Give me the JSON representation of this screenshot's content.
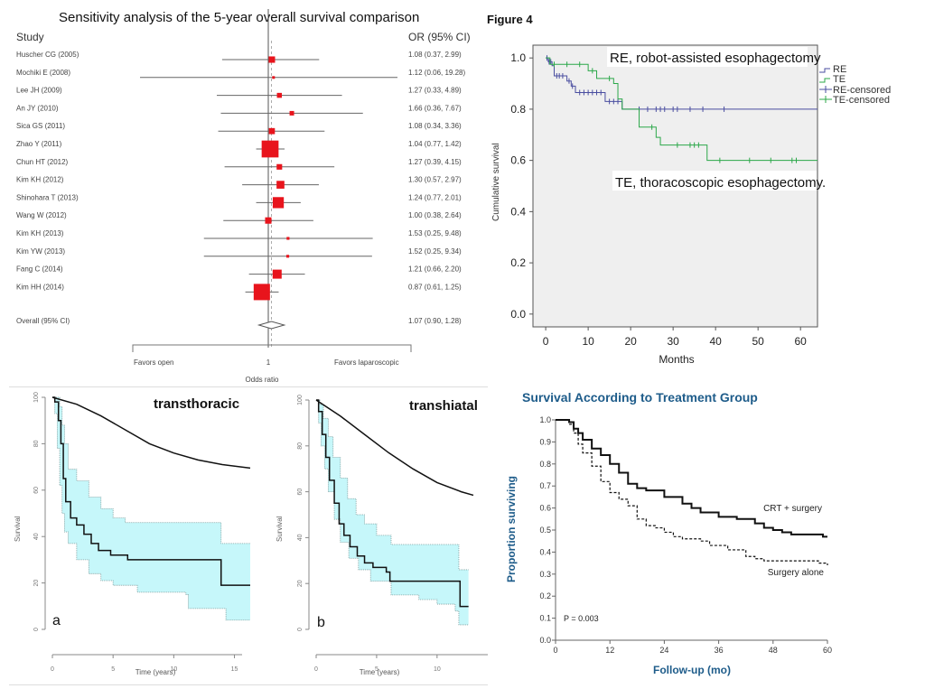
{
  "chart_data": [
    {
      "type": "forest",
      "title": "Sensitivity analysis of the 5-year overall survival comparison",
      "col_study": "Study",
      "col_or": "OR (95% CI)",
      "xlabel": "Odds ratio",
      "ref_tick": "1",
      "left_label": "Favors open",
      "right_label": "Favors laparoscopic",
      "colors": {
        "box": "#e8141c",
        "line": "#666666"
      },
      "studies": [
        {
          "name": "Huscher CG (2005)",
          "or": 1.08,
          "lo": 0.37,
          "hi": 2.99,
          "text": "1.08 (0.37, 2.99)",
          "weight": 2
        },
        {
          "name": "Mochiki E (2008)",
          "or": 1.12,
          "lo": 0.06,
          "hi": 19.28,
          "text": "1.12 (0.06, 19.28)",
          "weight": 0.3
        },
        {
          "name": "Lee JH (2009)",
          "or": 1.27,
          "lo": 0.33,
          "hi": 4.89,
          "text": "1.27 (0.33, 4.89)",
          "weight": 1.2
        },
        {
          "name": "An JY (2010)",
          "or": 1.66,
          "lo": 0.36,
          "hi": 7.67,
          "text": "1.66 (0.36, 7.67)",
          "weight": 1
        },
        {
          "name": "Sica GS (2011)",
          "or": 1.08,
          "lo": 0.34,
          "hi": 3.36,
          "text": "1.08 (0.34, 3.36)",
          "weight": 1.8
        },
        {
          "name": "Zhao Y (2011)",
          "or": 1.04,
          "lo": 0.77,
          "hi": 1.42,
          "text": "1.04 (0.77, 1.42)",
          "weight": 14
        },
        {
          "name": "Chun HT (2012)",
          "or": 1.27,
          "lo": 0.39,
          "hi": 4.15,
          "text": "1.27 (0.39, 4.15)",
          "weight": 1.5
        },
        {
          "name": "Kim KH (2012)",
          "or": 1.3,
          "lo": 0.57,
          "hi": 2.97,
          "text": "1.30 (0.57, 2.97)",
          "weight": 3
        },
        {
          "name": "Shinohara T (2013)",
          "or": 1.24,
          "lo": 0.77,
          "hi": 2.01,
          "text": "1.24 (0.77, 2.01)",
          "weight": 6
        },
        {
          "name": "Wang W (2012)",
          "or": 1.0,
          "lo": 0.38,
          "hi": 2.64,
          "text": "1.00 (0.38, 2.64)",
          "weight": 2
        },
        {
          "name": "Kim KH (2013)",
          "or": 1.53,
          "lo": 0.25,
          "hi": 9.48,
          "text": "1.53 (0.25, 9.48)",
          "weight": 0.4
        },
        {
          "name": "Kim YW (2013)",
          "or": 1.52,
          "lo": 0.25,
          "hi": 9.34,
          "text": "1.52 (0.25, 9.34)",
          "weight": 0.4
        },
        {
          "name": "Fang C (2014)",
          "or": 1.21,
          "lo": 0.66,
          "hi": 2.2,
          "text": "1.21 (0.66, 2.20)",
          "weight": 4
        },
        {
          "name": "Kim HH (2014)",
          "or": 0.87,
          "lo": 0.61,
          "hi": 1.25,
          "text": "0.87 (0.61, 1.25)",
          "weight": 13
        }
      ],
      "overall": {
        "name": "Overall (95% CI)",
        "or": 1.07,
        "lo": 0.9,
        "hi": 1.28,
        "text": "1.07 (0.90, 1.28)"
      },
      "xlim": [
        0.05,
        20
      ],
      "scale": "log"
    },
    {
      "type": "line",
      "figure_label": "Figure 4",
      "xlabel": "Months",
      "ylabel": "Cumulative survival",
      "xticks": [
        0,
        10,
        20,
        30,
        40,
        50,
        60
      ],
      "yticks": [
        "0.0",
        "0.2",
        "0.4",
        "0.6",
        "0.8",
        "1.0"
      ],
      "xlim": [
        -3,
        64
      ],
      "ylim": [
        -0.05,
        1.05
      ],
      "annotations": [
        "RE, robot-assisted esophagectomy",
        "TE, thoracoscopic esophagectomy."
      ],
      "legend": [
        "RE",
        "TE",
        "RE-censored",
        "TE-censored"
      ],
      "legend_position": "right",
      "colors": {
        "RE": "#4a4ea0",
        "TE": "#2ca84a",
        "bg": "#efefef"
      },
      "series": [
        {
          "name": "RE",
          "steps": [
            [
              0,
              1.0
            ],
            [
              0.6,
              0.985
            ],
            [
              1.5,
              0.97
            ],
            [
              2,
              0.93
            ],
            [
              5,
              0.91
            ],
            [
              6,
              0.89
            ],
            [
              7,
              0.865
            ],
            [
              14,
              0.83
            ],
            [
              18,
              0.8
            ],
            [
              64,
              0.8
            ]
          ],
          "censored": [
            0.3,
            0.8,
            1.2,
            2.6,
            3.2,
            4,
            5.5,
            6.3,
            8,
            9,
            10,
            11,
            12,
            13,
            15,
            16,
            17,
            22,
            24,
            26,
            27,
            28,
            30,
            31,
            34,
            37,
            42
          ]
        },
        {
          "name": "TE",
          "steps": [
            [
              0,
              1.0
            ],
            [
              1,
              0.975
            ],
            [
              10,
              0.95
            ],
            [
              12,
              0.92
            ],
            [
              16,
              0.9
            ],
            [
              17,
              0.84
            ],
            [
              18,
              0.8
            ],
            [
              22,
              0.73
            ],
            [
              26,
              0.69
            ],
            [
              27,
              0.66
            ],
            [
              38,
              0.6
            ],
            [
              64,
              0.6
            ]
          ],
          "censored": [
            2,
            5,
            8,
            11,
            15,
            25,
            31,
            34,
            35,
            36,
            41,
            48,
            53,
            58,
            59
          ]
        }
      ]
    },
    {
      "type": "line",
      "panel_label": "a",
      "title": "transthoracic",
      "xlabel": "Time (years)",
      "ylabel": "Survival",
      "xticks": [
        0,
        5,
        10,
        15
      ],
      "yticks": [
        0,
        20,
        40,
        60,
        80,
        100
      ],
      "xlim": [
        0,
        16.3
      ],
      "ylim": [
        0,
        100
      ],
      "colors": {
        "ci": "#c6f7fa",
        "line": "#111111",
        "ci_edge": "#7a9a9a"
      },
      "series": [
        {
          "name": "expected",
          "points": [
            [
              0,
              100
            ],
            [
              2,
              97
            ],
            [
              4,
              92
            ],
            [
              6,
              86
            ],
            [
              8,
              80
            ],
            [
              10,
              76
            ],
            [
              12,
              73
            ],
            [
              14,
              71
            ],
            [
              16.3,
              69.5
            ]
          ]
        },
        {
          "name": "observed",
          "steps": [
            [
              0,
              100
            ],
            [
              0.2,
              98
            ],
            [
              0.5,
              90
            ],
            [
              0.7,
              80
            ],
            [
              0.9,
              65
            ],
            [
              1.1,
              55
            ],
            [
              1.5,
              48
            ],
            [
              2,
              45
            ],
            [
              2.6,
              41
            ],
            [
              3.2,
              37
            ],
            [
              3.8,
              34
            ],
            [
              4.8,
              32
            ],
            [
              6.2,
              30
            ],
            [
              13.9,
              30
            ],
            [
              13.9,
              19
            ],
            [
              16.3,
              19
            ]
          ]
        },
        {
          "name": "ci_upper",
          "steps": [
            [
              0,
              100
            ],
            [
              0.3,
              100
            ],
            [
              0.6,
              96
            ],
            [
              0.8,
              88
            ],
            [
              1,
              80
            ],
            [
              1.3,
              69
            ],
            [
              2,
              64
            ],
            [
              3,
              57
            ],
            [
              4,
              52
            ],
            [
              5,
              48
            ],
            [
              6,
              46
            ],
            [
              13.9,
              46
            ],
            [
              13.9,
              37
            ],
            [
              16.3,
              37
            ]
          ]
        },
        {
          "name": "ci_lower",
          "steps": [
            [
              0,
              100
            ],
            [
              0.2,
              93
            ],
            [
              0.4,
              78
            ],
            [
              0.6,
              62
            ],
            [
              0.8,
              50
            ],
            [
              1,
              42
            ],
            [
              1.3,
              37
            ],
            [
              2,
              30
            ],
            [
              3,
              24
            ],
            [
              4,
              21
            ],
            [
              5,
              19
            ],
            [
              7,
              16
            ],
            [
              11,
              15
            ],
            [
              11.2,
              9
            ],
            [
              14,
              9
            ],
            [
              14.3,
              4
            ],
            [
              16.3,
              4
            ]
          ]
        }
      ]
    },
    {
      "type": "line",
      "panel_label": "b",
      "title": "transhiatal",
      "xlabel": "Time (years)",
      "ylabel": "Survival",
      "xticks": [
        0,
        5,
        10
      ],
      "yticks": [
        0,
        20,
        40,
        60,
        80,
        100
      ],
      "xlim": [
        0,
        13
      ],
      "ylim": [
        0,
        100
      ],
      "colors": {
        "ci": "#c6f7fa",
        "line": "#111111",
        "ci_edge": "#7a9a9a"
      },
      "series": [
        {
          "name": "expected",
          "points": [
            [
              0,
              100
            ],
            [
              2,
              93
            ],
            [
              4,
              85
            ],
            [
              6,
              77
            ],
            [
              8,
              70
            ],
            [
              10,
              64
            ],
            [
              12,
              60
            ],
            [
              13,
              58.5
            ]
          ]
        },
        {
          "name": "observed",
          "steps": [
            [
              0,
              100
            ],
            [
              0.2,
              95
            ],
            [
              0.5,
              85
            ],
            [
              0.8,
              75
            ],
            [
              1.1,
              65
            ],
            [
              1.5,
              55
            ],
            [
              1.9,
              46
            ],
            [
              2.3,
              41
            ],
            [
              2.8,
              36
            ],
            [
              3.4,
              32
            ],
            [
              4,
              29
            ],
            [
              4.7,
              27
            ],
            [
              5.8,
              25
            ],
            [
              6.1,
              21
            ],
            [
              11.9,
              21
            ],
            [
              11.9,
              10
            ],
            [
              12.6,
              10
            ]
          ]
        },
        {
          "name": "ci_upper",
          "steps": [
            [
              0,
              100
            ],
            [
              0.3,
              98
            ],
            [
              0.6,
              92
            ],
            [
              1,
              84
            ],
            [
              1.4,
              75
            ],
            [
              2,
              66
            ],
            [
              2.6,
              57
            ],
            [
              3.3,
              50
            ],
            [
              4,
              46
            ],
            [
              5,
              41
            ],
            [
              6.2,
              37
            ],
            [
              11.8,
              37
            ],
            [
              11.8,
              26
            ],
            [
              12.6,
              26
            ]
          ]
        },
        {
          "name": "ci_lower",
          "steps": [
            [
              0,
              100
            ],
            [
              0.2,
              90
            ],
            [
              0.4,
              80
            ],
            [
              0.7,
              70
            ],
            [
              1,
              60
            ],
            [
              1.5,
              48
            ],
            [
              2,
              38
            ],
            [
              2.7,
              31
            ],
            [
              3.5,
              26
            ],
            [
              4.5,
              21
            ],
            [
              6.2,
              15
            ],
            [
              8.5,
              13
            ],
            [
              10,
              11
            ],
            [
              11.5,
              8
            ],
            [
              11.8,
              2
            ],
            [
              12.6,
              2
            ]
          ]
        }
      ]
    },
    {
      "type": "line",
      "title": "Survival According to Treatment Group",
      "xlabel": "Follow-up (mo)",
      "ylabel": "Proportion surviving",
      "xticks": [
        0,
        12,
        24,
        36,
        48,
        60
      ],
      "yticks": [
        "0.0",
        "0.1",
        "0.2",
        "0.3",
        "0.4",
        "0.5",
        "0.6",
        "0.7",
        "0.8",
        "0.9",
        "1.0"
      ],
      "xlim": [
        0,
        60
      ],
      "ylim": [
        0,
        1.0
      ],
      "annotations": [
        "CRT + surgery",
        "Surgery alone",
        "P = 0.003"
      ],
      "colors": {
        "title": "#1e5c8a",
        "line": "#111111"
      },
      "series": [
        {
          "name": "CRT + surgery",
          "style": "solid",
          "points": [
            [
              0,
              1.0
            ],
            [
              2,
              1.0
            ],
            [
              3,
              0.99
            ],
            [
              4,
              0.96
            ],
            [
              5,
              0.94
            ],
            [
              6,
              0.91
            ],
            [
              8,
              0.87
            ],
            [
              10,
              0.84
            ],
            [
              12,
              0.8
            ],
            [
              14,
              0.76
            ],
            [
              16,
              0.71
            ],
            [
              18,
              0.69
            ],
            [
              20,
              0.68
            ],
            [
              24,
              0.65
            ],
            [
              28,
              0.62
            ],
            [
              30,
              0.6
            ],
            [
              32,
              0.58
            ],
            [
              36,
              0.56
            ],
            [
              40,
              0.55
            ],
            [
              44,
              0.53
            ],
            [
              46,
              0.51
            ],
            [
              48,
              0.5
            ],
            [
              50,
              0.49
            ],
            [
              52,
              0.48
            ],
            [
              58,
              0.48
            ],
            [
              59,
              0.47
            ],
            [
              60,
              0.47
            ]
          ]
        },
        {
          "name": "Surgery alone",
          "style": "dashed",
          "points": [
            [
              0,
              1.0
            ],
            [
              2,
              1.0
            ],
            [
              3,
              0.98
            ],
            [
              4,
              0.94
            ],
            [
              5,
              0.89
            ],
            [
              6,
              0.85
            ],
            [
              8,
              0.79
            ],
            [
              10,
              0.72
            ],
            [
              12,
              0.67
            ],
            [
              14,
              0.64
            ],
            [
              16,
              0.61
            ],
            [
              18,
              0.55
            ],
            [
              20,
              0.52
            ],
            [
              22,
              0.51
            ],
            [
              24,
              0.49
            ],
            [
              26,
              0.47
            ],
            [
              28,
              0.46
            ],
            [
              32,
              0.45
            ],
            [
              34,
              0.43
            ],
            [
              38,
              0.41
            ],
            [
              42,
              0.38
            ],
            [
              44,
              0.37
            ],
            [
              46,
              0.36
            ],
            [
              52,
              0.36
            ],
            [
              58,
              0.35
            ],
            [
              60,
              0.34
            ]
          ]
        }
      ]
    }
  ]
}
